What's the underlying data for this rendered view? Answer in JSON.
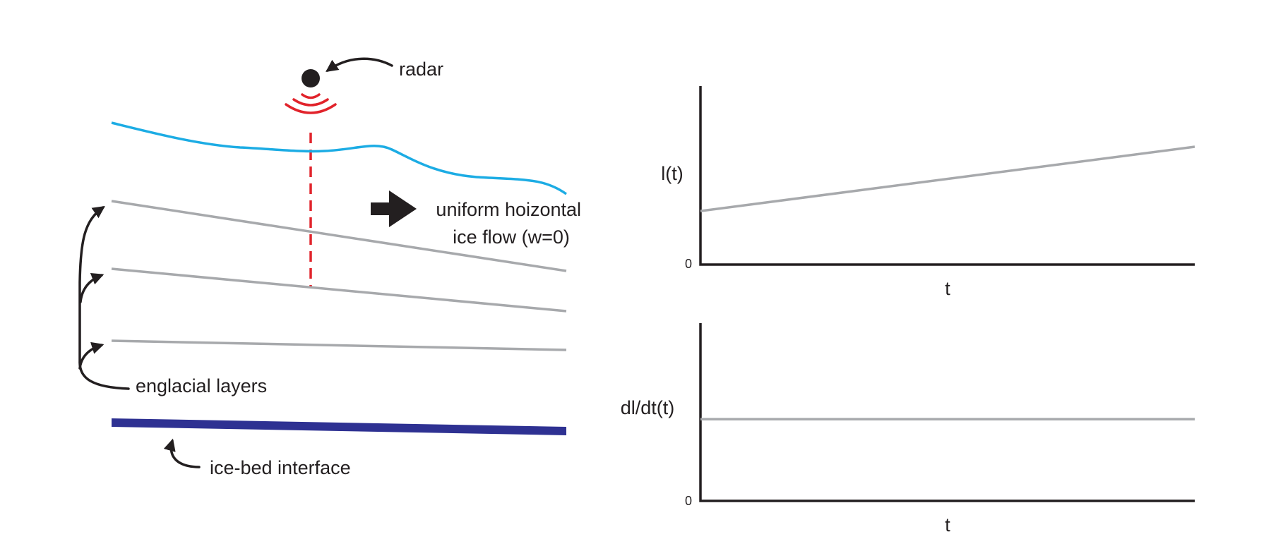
{
  "schematic": {
    "radar_label": "radar",
    "flow_label_line1": "uniform hoizontal",
    "flow_label_line2": "ice flow (w=0)",
    "layers_label": "englacial layers",
    "bed_label": "ice-bed interface"
  },
  "colors": {
    "surface": "#1cace4",
    "signal": "#e1232b",
    "layers": "#a7a9ac",
    "bed": "#2e3192",
    "ink": "#231f20"
  },
  "chart_data": [
    {
      "type": "line",
      "title": "",
      "xlabel": "t",
      "ylabel": "l(t)",
      "y_tick_labels": [
        "0"
      ],
      "series": [
        {
          "x": [
            0,
            1
          ],
          "y": [
            0.3,
            0.66
          ]
        }
      ]
    },
    {
      "type": "line",
      "title": "",
      "xlabel": "t",
      "ylabel": "dl/dt(t)",
      "y_tick_labels": [
        "0"
      ],
      "series": [
        {
          "x": [
            0,
            1
          ],
          "y": [
            0.46,
            0.46
          ]
        }
      ]
    }
  ]
}
